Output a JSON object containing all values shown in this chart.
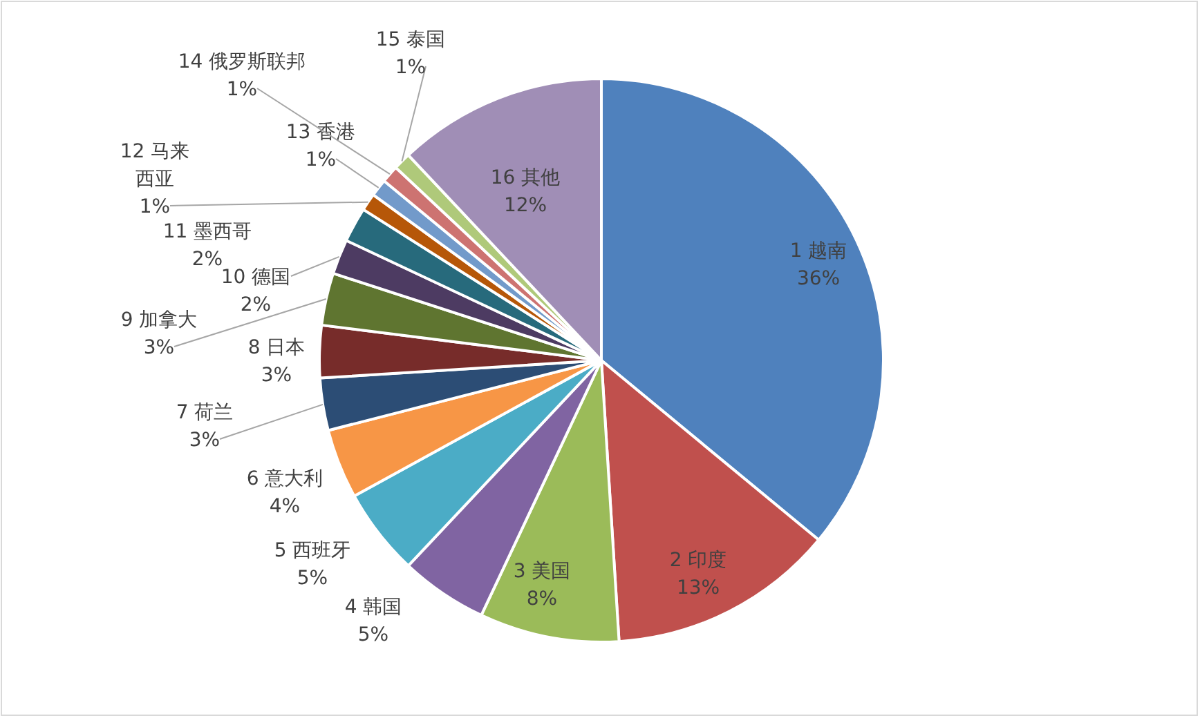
{
  "chart_data": {
    "type": "pie",
    "categories": [
      "1 越南",
      "2 印度",
      "3 美国",
      "4 韩国",
      "5 西班牙",
      "6 意大利",
      "7 荷兰",
      "8 日本",
      "9 加拿大",
      "10 德国",
      "11 墨西哥",
      "12 马来西亚",
      "13 香港",
      "14 俄罗斯联邦",
      "15 泰国",
      "16 其他"
    ],
    "values": [
      36,
      13,
      8,
      5,
      5,
      4,
      3,
      3,
      3,
      2,
      2,
      1,
      1,
      1,
      1,
      12
    ],
    "colors": [
      "#4f81bd",
      "#c0504d",
      "#9bbb59",
      "#8064a2",
      "#4bacc6",
      "#f79646",
      "#2c4d75",
      "#772c2a",
      "#5f7530",
      "#4d3b62",
      "#276a7c",
      "#b65708",
      "#729aca",
      "#cd7371",
      "#afc97a",
      "#a08eb6"
    ],
    "value_labels": [
      "36%",
      "13%",
      "8%",
      "5%",
      "5%",
      "4%",
      "3%",
      "3%",
      "3%",
      "2%",
      "2%",
      "1%",
      "1%",
      "1%",
      "1%",
      "12%"
    ]
  }
}
